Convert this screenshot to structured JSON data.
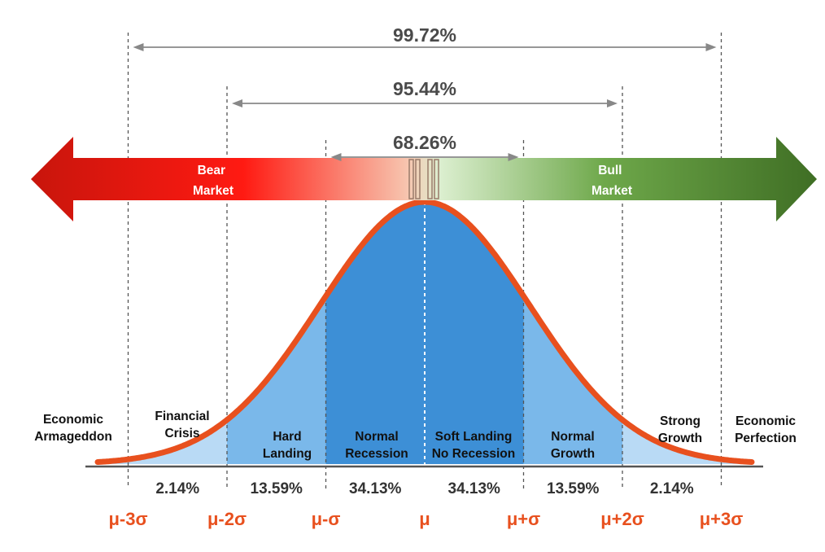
{
  "colors": {
    "bear": "#e3180f",
    "bull": "#4f7f2d",
    "curve": "#e8501e",
    "fill_dark": "#3d8fd6",
    "fill_mid": "#7ab8ea",
    "fill_light": "#b9daf5",
    "sigma_text": "#e8501e"
  },
  "ranges": [
    {
      "label": "99.72%",
      "from": -3,
      "to": 3
    },
    {
      "label": "95.44%",
      "from": -2,
      "to": 2
    },
    {
      "label": "68.26%",
      "from": -1,
      "to": 1
    }
  ],
  "market": {
    "bear": [
      "Bear",
      "Market"
    ],
    "bull": [
      "Bull",
      "Market"
    ]
  },
  "regions": [
    {
      "lines": [
        "Economic",
        "Armageddon"
      ]
    },
    {
      "lines": [
        "Financial",
        "Crisis"
      ]
    },
    {
      "lines": [
        "Hard",
        "Landing"
      ]
    },
    {
      "lines": [
        "Normal",
        "Recession"
      ]
    },
    {
      "lines": [
        "Soft Landing",
        "No Recession"
      ]
    },
    {
      "lines": [
        "Normal",
        "Growth"
      ]
    },
    {
      "lines": [
        "Strong",
        "Growth"
      ]
    },
    {
      "lines": [
        "Economic",
        "Perfection"
      ]
    }
  ],
  "area_percents": [
    "2.14%",
    "13.59%",
    "34.13%",
    "34.13%",
    "13.59%",
    "2.14%"
  ],
  "sigma_labels": [
    "μ-3σ",
    "μ-2σ",
    "μ-σ",
    "μ",
    "μ+σ",
    "μ+2σ",
    "μ+3σ"
  ]
}
